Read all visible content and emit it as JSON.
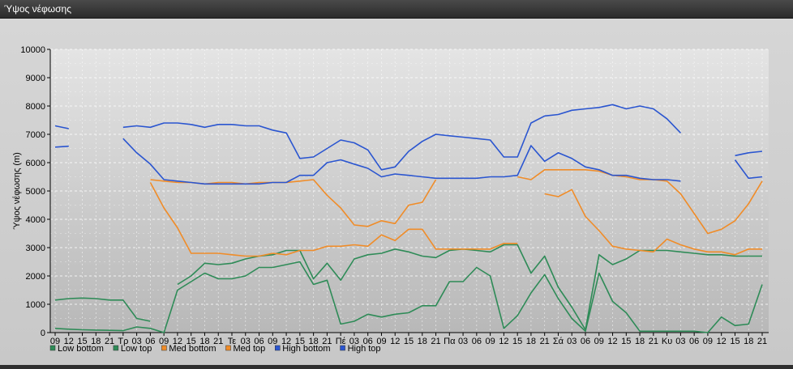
{
  "window": {
    "title": "Ύψος νέφωσης"
  },
  "chart_data": {
    "type": "line",
    "title": "",
    "ylabel": "Ύψος νέφωσης (m)",
    "xlabel": "",
    "ylim": [
      0,
      10000
    ],
    "yticks": [
      0,
      1000,
      2000,
      3000,
      4000,
      5000,
      6000,
      7000,
      8000,
      9000,
      10000
    ],
    "grid": true,
    "legend_position": "bottom-left",
    "x_tick_labels": [
      "09",
      "12",
      "15",
      "18",
      "21",
      "Τρ",
      "03",
      "06",
      "09",
      "12",
      "15",
      "18",
      "21",
      "Τε",
      "03",
      "06",
      "09",
      "12",
      "15",
      "18",
      "21",
      "Πέ",
      "03",
      "06",
      "09",
      "12",
      "15",
      "18",
      "21",
      "Πα",
      "03",
      "06",
      "09",
      "12",
      "15",
      "18",
      "21",
      "Σά",
      "03",
      "06",
      "09",
      "12",
      "15",
      "18",
      "21",
      "Κυ",
      "03",
      "06",
      "09",
      "12",
      "15",
      "18",
      "21"
    ],
    "series": [
      {
        "name": "Low bottom",
        "color": "#2e8b57",
        "values": [
          150,
          120,
          100,
          90,
          80,
          70,
          200,
          150,
          0,
          1500,
          1800,
          2100,
          1900,
          1900,
          2000,
          2300,
          2300,
          2400,
          2500,
          1700,
          1850,
          300,
          400,
          650,
          550,
          650,
          700,
          950,
          950,
          1800,
          1800,
          2300,
          2000,
          150,
          600,
          1400,
          2050,
          1200,
          500,
          50,
          2100,
          1100,
          700,
          50,
          50,
          50,
          50,
          50,
          0,
          550,
          250,
          300,
          1700
        ]
      },
      {
        "name": "Low top",
        "color": "#2e8b57",
        "values": [
          1150,
          1200,
          1220,
          1200,
          1150,
          1150,
          500,
          400,
          null,
          1700,
          2000,
          2450,
          2400,
          2450,
          2600,
          2700,
          2750,
          2900,
          2900,
          1900,
          2450,
          1850,
          2600,
          2750,
          2800,
          2950,
          2850,
          2700,
          2650,
          2900,
          2950,
          2900,
          2850,
          3100,
          3100,
          2100,
          2700,
          1600,
          900,
          100,
          2750,
          2400,
          2600,
          2900,
          2900,
          2900,
          2850,
          2800,
          2750,
          2750,
          2700,
          2700,
          2700
        ]
      },
      {
        "name": "Med bottom",
        "color": "#f08c28",
        "values": [
          null,
          null,
          null,
          null,
          null,
          null,
          null,
          5300,
          4400,
          3700,
          2800,
          2800,
          2800,
          2750,
          2700,
          2700,
          2800,
          2750,
          2900,
          2900,
          3050,
          3050,
          3100,
          3050,
          3450,
          3250,
          3650,
          3650,
          2950,
          2950,
          2950,
          2950,
          2950,
          3150,
          3150,
          null,
          4900,
          4800,
          5050,
          4100,
          3600,
          3050,
          2950,
          2900,
          2850,
          3300,
          3100,
          2950,
          2850,
          2850,
          2750,
          2950,
          2950
        ]
      },
      {
        "name": "Med top",
        "color": "#f08c28",
        "values": [
          null,
          null,
          null,
          null,
          null,
          null,
          null,
          5400,
          5350,
          5300,
          5300,
          5250,
          5300,
          5300,
          5250,
          5300,
          5300,
          5300,
          5350,
          5400,
          4850,
          4400,
          3800,
          3750,
          3950,
          3850,
          4500,
          4600,
          5400,
          null,
          null,
          null,
          null,
          null,
          5500,
          5400,
          5750,
          5750,
          5750,
          5750,
          5700,
          5550,
          5500,
          5400,
          5400,
          5350,
          4900,
          4200,
          3500,
          3650,
          3950,
          4550,
          5350
        ]
      },
      {
        "name": "High bottom",
        "color": "#2a55d0",
        "values": [
          null,
          null,
          null,
          null,
          null,
          6850,
          6350,
          5950,
          5400,
          5350,
          5300,
          5250,
          5250,
          5250,
          5250,
          5250,
          5300,
          5300,
          5550,
          5550,
          6000,
          6100,
          5950,
          5800,
          5500,
          5600,
          5550,
          5500,
          5450,
          5450,
          5450,
          5450,
          5500,
          5500,
          5550,
          6600,
          6050,
          6350,
          6150,
          5850,
          5750,
          5550,
          5550,
          5450,
          5400,
          5400,
          5350,
          null,
          null,
          null,
          6100,
          5450,
          5500
        ]
      },
      {
        "name": "High top",
        "color": "#2a55d0",
        "values": [
          7300,
          7200,
          null,
          null,
          null,
          7250,
          7300,
          7250,
          7400,
          7400,
          7350,
          7250,
          7350,
          7350,
          7300,
          7300,
          7150,
          7050,
          6150,
          6200,
          6500,
          6800,
          6700,
          6450,
          5750,
          5850,
          6400,
          6750,
          7000,
          6950,
          6900,
          6850,
          6800,
          6200,
          6200,
          7400,
          7650,
          7700,
          7850,
          7900,
          7950,
          8050,
          7900,
          8000,
          7900,
          7550,
          7050,
          null,
          null,
          null,
          6250,
          6350,
          6400
        ]
      },
      {
        "name": "",
        "color": "#2a55d0",
        "values": [
          6550,
          6580,
          null,
          null,
          null,
          null,
          null,
          null,
          null,
          null,
          null,
          null,
          null,
          null,
          null,
          null,
          null,
          null,
          null,
          null,
          null,
          null,
          null,
          null,
          null,
          null,
          null,
          null,
          null,
          null,
          null,
          null,
          null,
          null,
          null,
          null,
          null,
          null,
          null,
          null,
          null,
          null,
          null,
          null,
          null,
          null,
          null,
          null,
          null,
          null,
          null,
          null,
          null
        ]
      }
    ]
  }
}
